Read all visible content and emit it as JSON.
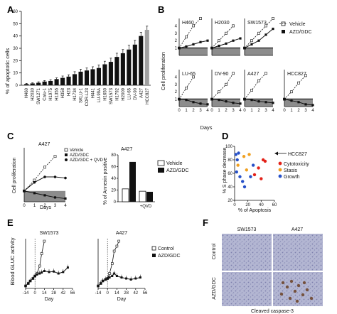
{
  "panels": {
    "A": "A",
    "B": "B",
    "C": "C",
    "D": "D",
    "E": "E",
    "F": "F"
  },
  "panel_A": {
    "ylabel": "% of apoptotic cells",
    "yticks": [
      "0",
      "10",
      "20",
      "30",
      "40",
      "50",
      "60"
    ],
    "ylim": [
      0,
      60
    ],
    "categories": [
      "H460",
      "H2030",
      "SW1271",
      "Calu-1",
      "H1975",
      "H1355",
      "H358",
      "H23",
      "H1734",
      "SKLU-1",
      "COR-L23",
      "H441",
      "LU-99A",
      "H1650",
      "SW1573",
      "H1792",
      "H2009",
      "LU-65",
      "DV-90",
      "A427",
      "HCC827"
    ],
    "values": [
      1,
      1.5,
      2,
      3,
      3.5,
      5,
      6,
      7,
      9,
      11,
      12,
      13,
      14,
      17,
      19,
      23,
      26,
      29,
      33,
      40,
      45
    ],
    "errors": [
      0.5,
      0.5,
      0.8,
      0.8,
      1,
      1,
      1.5,
      1.5,
      2,
      2,
      2,
      2,
      2.5,
      2.5,
      3,
      3,
      3,
      3.5,
      3.5,
      3,
      3
    ],
    "bar_color": "#111111",
    "highlight_color": "#a0a0a0",
    "highlight_label": "HCC827"
  },
  "panel_B": {
    "ylabel": "Cell proliferation",
    "xlabel": "Days",
    "xticks": [
      "0",
      "1",
      "2",
      "3",
      "4"
    ],
    "yticks": [
      "1",
      "2",
      "3",
      "4"
    ],
    "legend": [
      {
        "label": "Vehicle",
        "marker": "open-square",
        "line": "dashed"
      },
      {
        "label": "AZD/GDC",
        "marker": "filled-square",
        "line": "solid"
      }
    ],
    "subplots": [
      {
        "title": "H460",
        "vehicle": [
          1,
          2.5,
          4,
          5
        ],
        "drug": [
          1,
          1.2,
          1.5,
          1.8,
          2
        ]
      },
      {
        "title": "H2030",
        "vehicle": [
          1,
          2,
          3,
          4
        ],
        "drug": [
          1,
          1.3,
          1.6,
          2,
          2.3
        ]
      },
      {
        "title": "SW1573",
        "vehicle": [
          1,
          2,
          3,
          4,
          5
        ],
        "drug": [
          1,
          1.5,
          2,
          2.8,
          3.6
        ]
      },
      {
        "title": "LU-65",
        "vehicle": [
          1,
          2.5,
          4
        ],
        "drug": [
          1,
          0.9,
          0.6,
          0.4,
          0.3
        ]
      },
      {
        "title": "DV-90",
        "vehicle": [
          1,
          2,
          3,
          4.5
        ],
        "drug": [
          1,
          0.9,
          0.7,
          0.5,
          0.4
        ]
      },
      {
        "title": "A427",
        "vehicle": [
          1,
          2.2,
          3.5,
          4.5
        ],
        "drug": [
          1,
          0.9,
          0.7,
          0.6,
          0.5
        ]
      },
      {
        "title": "HCC827",
        "vehicle": [
          1,
          2,
          3.2,
          4.2
        ],
        "drug": [
          1,
          0.8,
          0.6,
          0.3,
          0.2
        ]
      }
    ]
  },
  "panel_C": {
    "title": "A427",
    "ylabel": "Cell proliferation",
    "xlabel": "Days",
    "xticks": [
      "0",
      "1",
      "2",
      "3",
      "4"
    ],
    "legend": [
      "Vehicle",
      "AZD/GDC",
      "AZD/GDC + QVD"
    ],
    "vehicle": [
      1,
      2,
      3.2,
      4.2
    ],
    "drug": [
      1,
      0.8,
      0.6,
      0.4,
      0.3
    ],
    "drug_qvd": [
      1,
      1.8,
      2.3,
      2.3,
      2.2
    ],
    "bar_title": "A427",
    "bar_ylabel": "% of Annexin positive",
    "bar_yticks": [
      "0",
      "20",
      "40",
      "60",
      "80"
    ],
    "bar_legend": [
      "Vehicle",
      "AZD/GDC"
    ],
    "bar_xlabel": "+QVD",
    "bars": [
      {
        "group": "-",
        "vehicle": 22,
        "drug": 68
      },
      {
        "group": "+QVD",
        "vehicle": 18,
        "drug": 17
      }
    ]
  },
  "panel_D": {
    "ylabel": "% S phase decrease",
    "xlabel": "% of Apoptosis",
    "xticks": [
      "0",
      "20",
      "40",
      "60"
    ],
    "yticks": [
      "20",
      "40",
      "60",
      "80",
      "100"
    ],
    "annotation": "HCC827",
    "legend": [
      {
        "label": "Cytotoxicity",
        "color": "#e32219"
      },
      {
        "label": "Stasis",
        "color": "#f0a020"
      },
      {
        "label": "Growth",
        "color": "#2650c8"
      }
    ],
    "points": [
      {
        "x": 2,
        "y": 88,
        "c": "Growth"
      },
      {
        "x": 4,
        "y": 80,
        "c": "Growth"
      },
      {
        "x": 6,
        "y": 90,
        "c": "Growth"
      },
      {
        "x": 3,
        "y": 62,
        "c": "Growth"
      },
      {
        "x": 8,
        "y": 55,
        "c": "Growth"
      },
      {
        "x": 12,
        "y": 48,
        "c": "Growth"
      },
      {
        "x": 5,
        "y": 72,
        "c": "Stasis"
      },
      {
        "x": 14,
        "y": 85,
        "c": "Stasis"
      },
      {
        "x": 18,
        "y": 65,
        "c": "Stasis"
      },
      {
        "x": 22,
        "y": 88,
        "c": "Stasis"
      },
      {
        "x": 28,
        "y": 72,
        "c": "Growth"
      },
      {
        "x": 30,
        "y": 58,
        "c": "Cytotoxicity"
      },
      {
        "x": 24,
        "y": 55,
        "c": "Growth"
      },
      {
        "x": 36,
        "y": 68,
        "c": "Cytotoxicity"
      },
      {
        "x": 40,
        "y": 52,
        "c": "Cytotoxicity"
      },
      {
        "x": 43,
        "y": 80,
        "c": "Cytotoxicity"
      },
      {
        "x": 46,
        "y": 78,
        "c": "Cytotoxicity"
      },
      {
        "x": 15,
        "y": 40,
        "c": "Growth"
      }
    ]
  },
  "panel_E": {
    "ylabel": "Blood GLUC activity",
    "xlabel": "Day",
    "xticks": [
      "-14",
      "0",
      "14",
      "28",
      "42",
      "56"
    ],
    "legend": [
      {
        "label": "Control",
        "marker": "open-square"
      },
      {
        "label": "AZD/GDC",
        "marker": "filled-square"
      }
    ],
    "subplots": [
      {
        "title": "SW1573",
        "control_x": [
          -14,
          -10,
          -7,
          -3,
          0,
          3,
          7,
          10,
          14
        ],
        "control": [
          0.05,
          0.1,
          0.15,
          0.2,
          0.25,
          0.3,
          0.45,
          0.7,
          0.95
        ],
        "drug_x": [
          -14,
          -10,
          -7,
          -3,
          0,
          3,
          7,
          10,
          14,
          21,
          28,
          35,
          42,
          49
        ],
        "drug": [
          0.05,
          0.1,
          0.15,
          0.2,
          0.25,
          0.28,
          0.3,
          0.32,
          0.35,
          0.33,
          0.34,
          0.3,
          0.33,
          0.42
        ]
      },
      {
        "title": "A427",
        "control_x": [
          -14,
          -10,
          -7,
          -3,
          0,
          3,
          7,
          10,
          14,
          17
        ],
        "control": [
          0.05,
          0.1,
          0.15,
          0.18,
          0.2,
          0.3,
          0.5,
          0.75,
          0.85,
          0.95
        ],
        "drug_x": [
          -14,
          -10,
          -7,
          -3,
          0,
          3,
          7,
          10,
          14,
          21,
          28,
          35,
          42,
          49
        ],
        "drug": [
          0.05,
          0.1,
          0.15,
          0.18,
          0.2,
          0.22,
          0.25,
          0.3,
          0.25,
          0.22,
          0.2,
          0.18,
          0.2,
          0.22
        ]
      }
    ]
  },
  "panel_F": {
    "col_labels": [
      "SW1573",
      "A427"
    ],
    "row_labels": [
      "Control",
      "AZD/GDC"
    ],
    "caption": "Cleaved caspase-3",
    "tissue_color": "#a6a9c9",
    "stain_color": "#6b4226"
  }
}
